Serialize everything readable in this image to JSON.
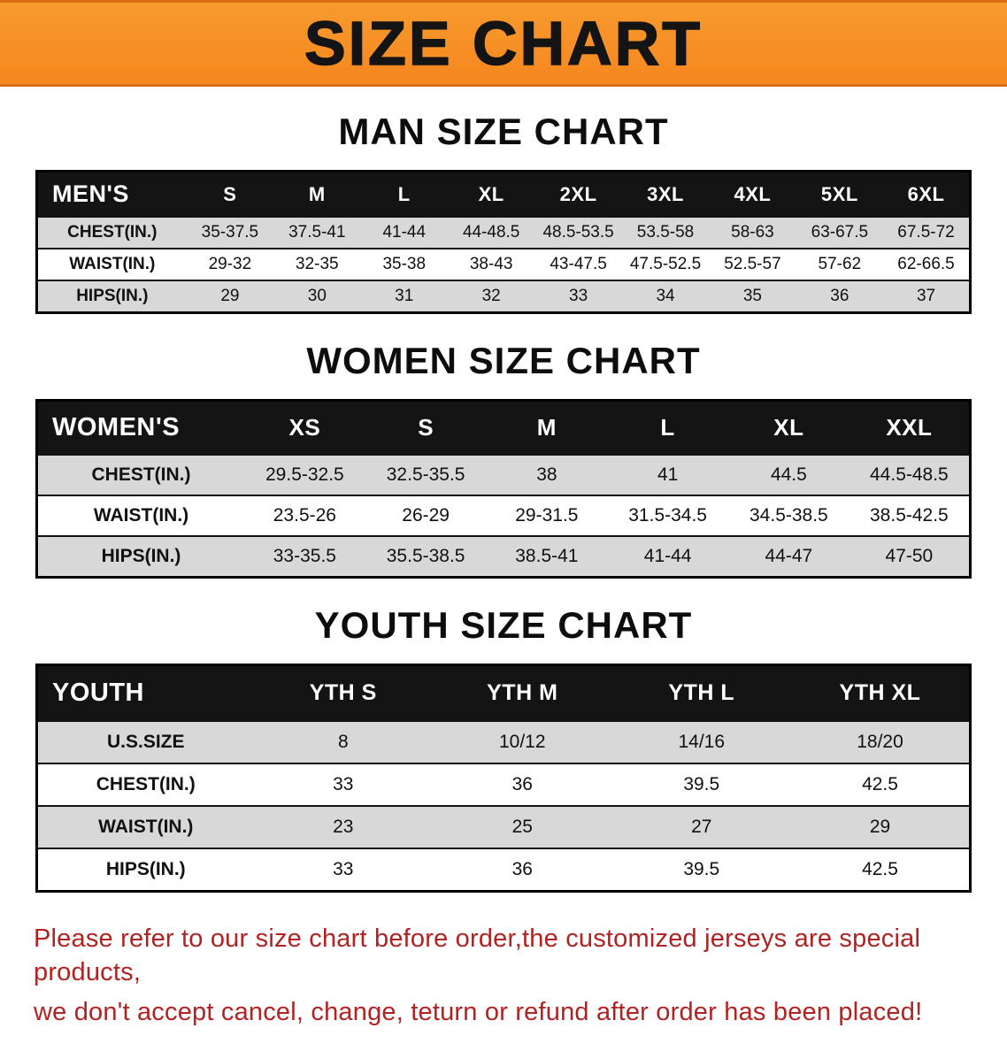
{
  "banner": {
    "title": "SIZE CHART",
    "bg_color": "#F6871F",
    "text_color": "#141414"
  },
  "colors": {
    "table_header_bg": "#141414",
    "table_stripe": "#D8D8D8",
    "disclaimer_red": "#B22222"
  },
  "sections": [
    {
      "id": "men",
      "heading": "MAN SIZE CHART",
      "table": {
        "header": [
          "MEN'S",
          "S",
          "M",
          "L",
          "XL",
          "2XL",
          "3XL",
          "4XL",
          "5XL",
          "6XL"
        ],
        "rows": [
          [
            "CHEST(IN.)",
            "35-37.5",
            "37.5-41",
            "41-44",
            "44-48.5",
            "48.5-53.5",
            "53.5-58",
            "58-63",
            "63-67.5",
            "67.5-72"
          ],
          [
            "WAIST(IN.)",
            "29-32",
            "32-35",
            "35-38",
            "38-43",
            "43-47.5",
            "47.5-52.5",
            "52.5-57",
            "57-62",
            "62-66.5"
          ],
          [
            "HIPS(IN.)",
            "29",
            "30",
            "31",
            "32",
            "33",
            "34",
            "35",
            "36",
            "37"
          ]
        ]
      }
    },
    {
      "id": "women",
      "heading": "WOMEN SIZE CHART",
      "table": {
        "header": [
          "WOMEN'S",
          "XS",
          "S",
          "M",
          "L",
          "XL",
          "XXL"
        ],
        "rows": [
          [
            "CHEST(IN.)",
            "29.5-32.5",
            "32.5-35.5",
            "38",
            "41",
            "44.5",
            "44.5-48.5"
          ],
          [
            "WAIST(IN.)",
            "23.5-26",
            "26-29",
            "29-31.5",
            "31.5-34.5",
            "34.5-38.5",
            "38.5-42.5"
          ],
          [
            "HIPS(IN.)",
            "33-35.5",
            "35.5-38.5",
            "38.5-41",
            "41-44",
            "44-47",
            "47-50"
          ]
        ]
      }
    },
    {
      "id": "youth",
      "heading": "YOUTH SIZE CHART",
      "table": {
        "header": [
          "YOUTH",
          "YTH S",
          "YTH M",
          "YTH L",
          "YTH XL"
        ],
        "rows": [
          [
            "U.S.SIZE",
            "8",
            "10/12",
            "14/16",
            "18/20"
          ],
          [
            "CHEST(IN.)",
            "33",
            "36",
            "39.5",
            "42.5"
          ],
          [
            "WAIST(IN.)",
            "23",
            "25",
            "27",
            "29"
          ],
          [
            "HIPS(IN.)",
            "33",
            "36",
            "39.5",
            "42.5"
          ]
        ]
      }
    }
  ],
  "disclaimer": {
    "line1": "Please refer to our size chart before order,the customized jerseys are special products,",
    "line2": "we don't accept cancel, change, teturn or refund after order has been placed!",
    "color": "#B22222"
  }
}
